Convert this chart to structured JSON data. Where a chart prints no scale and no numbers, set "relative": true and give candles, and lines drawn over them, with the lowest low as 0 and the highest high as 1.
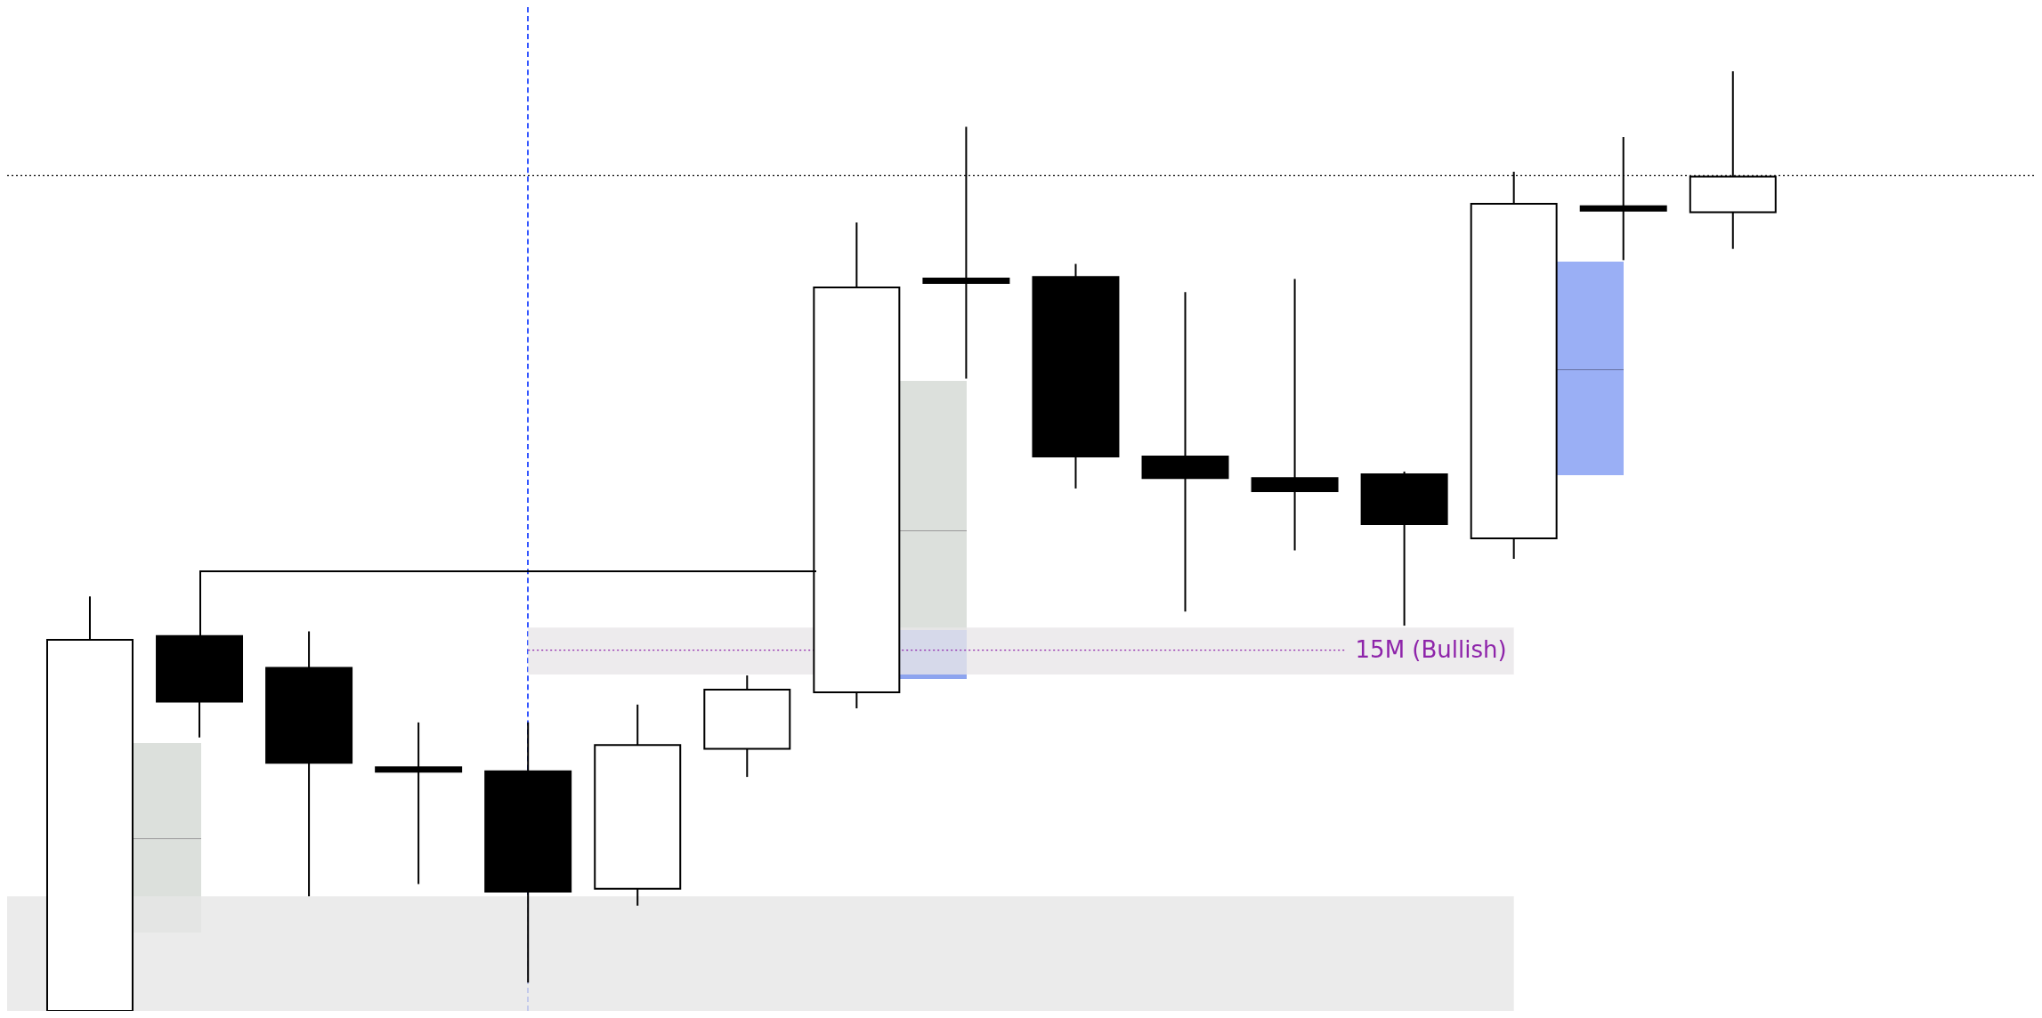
{
  "chart_data": {
    "type": "candlestick",
    "relative": true,
    "categories": [
      null,
      null,
      null,
      null,
      null,
      null,
      null,
      null,
      null,
      null,
      null,
      null,
      null,
      null,
      null,
      null
    ],
    "ohlc": [
      [
        0,
        0.441,
        0,
        0.395
      ],
      [
        0.399,
        0.399,
        0.291,
        0.329
      ],
      [
        0.365,
        0.404,
        0.122,
        0.264
      ],
      [
        0.257,
        0.307,
        0.135,
        0.257
      ],
      [
        0.255,
        0.307,
        0.03,
        0.127
      ],
      [
        0.13,
        0.326,
        0.112,
        0.283
      ],
      [
        0.279,
        0.357,
        0.249,
        0.342
      ],
      [
        0.339,
        0.839,
        0.322,
        0.77
      ],
      [
        0.777,
        0.941,
        0.673,
        0.777
      ],
      [
        0.781,
        0.795,
        0.556,
        0.59
      ],
      [
        0.59,
        0.765,
        0.425,
        0.567
      ],
      [
        0.567,
        0.779,
        0.49,
        0.553
      ],
      [
        0.571,
        0.574,
        0.41,
        0.518
      ],
      [
        0.503,
        0.893,
        0.481,
        0.859
      ],
      [
        0.854,
        0.93,
        0.799,
        0.854
      ],
      [
        0.85,
        1,
        0.811,
        0.888
      ]
    ],
    "ref_lines": [
      {
        "axis": "y",
        "value": 0.889,
        "color": "#000000",
        "line_style": "dotted"
      },
      {
        "axis": "y",
        "value": 0.384,
        "label": "15M (Bullish)",
        "color": "#8e24aa",
        "line_style": "dotted"
      }
    ],
    "bands": [
      {
        "axis": "y",
        "from": 0.358,
        "to": 0.408,
        "color": "#e8e6e8"
      },
      {
        "axis": "y",
        "from": 0,
        "to": 0.122,
        "color": "#e6e6e6"
      }
    ],
    "legend": false
  }
}
